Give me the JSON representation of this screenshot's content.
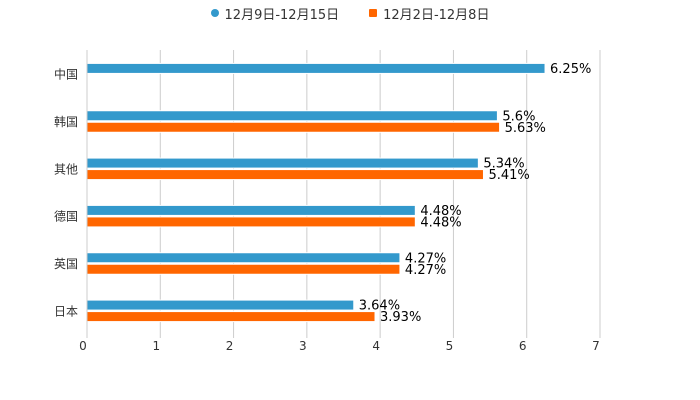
{
  "chart_data": {
    "type": "bar",
    "orientation": "horizontal",
    "categories": [
      "中国",
      "韩国",
      "其他",
      "德国",
      "英国",
      "日本"
    ],
    "series": [
      {
        "name": "12月9日-12月15日",
        "color": "#3399cc",
        "marker": "circle",
        "values": [
          6.25,
          5.6,
          5.34,
          4.48,
          4.27,
          3.64
        ],
        "labels": [
          "6.25%",
          "5.6%",
          "5.34%",
          "4.48%",
          "4.27%",
          "3.64%"
        ]
      },
      {
        "name": "12月2日-12月8日",
        "color": "#ff6600",
        "marker": "square",
        "values": [
          null,
          5.63,
          5.41,
          4.48,
          4.27,
          3.93
        ],
        "labels": [
          "",
          "5.63%",
          "5.41%",
          "4.48%",
          "4.27%",
          "3.93%"
        ]
      }
    ],
    "xlim": [
      0,
      7
    ],
    "xticks": [
      "0",
      "1",
      "2",
      "3",
      "4",
      "5",
      "6",
      "7"
    ],
    "grid": true,
    "legend_position": "top-center"
  }
}
